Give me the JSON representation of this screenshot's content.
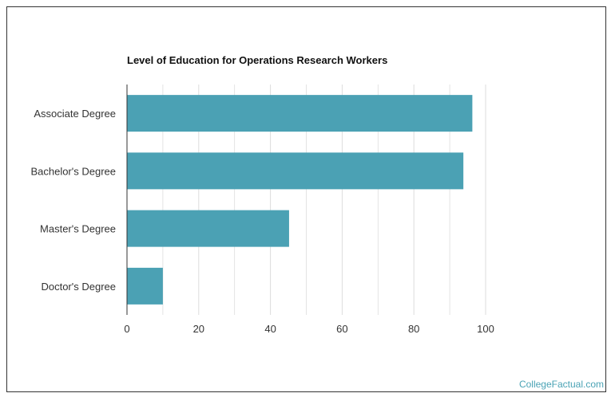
{
  "chart_data": {
    "type": "bar",
    "orientation": "horizontal",
    "title": "Level of Education for Operations Research Workers",
    "categories": [
      "Associate Degree",
      "Bachelor's Degree",
      "Master's Degree",
      "Doctor's Degree"
    ],
    "values": [
      96.3,
      93.8,
      45.2,
      10.0
    ],
    "xlim": [
      0,
      100
    ],
    "xticks": [
      0,
      20,
      40,
      60,
      80,
      100
    ],
    "grid": true,
    "bar_color": "#4ba1b4",
    "grid_color": "#dddddd"
  },
  "footer": {
    "credit": "CollegeFactual.com"
  }
}
